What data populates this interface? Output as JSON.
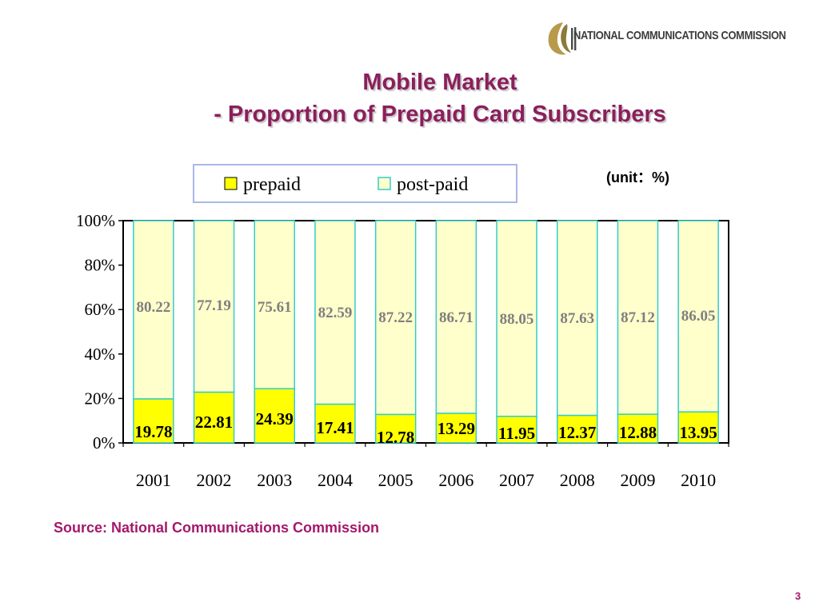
{
  "header": {
    "org_name": "NATIONAL COMMUNICATIONS COMMISSION",
    "logo_icon": "ncc-logo-icon"
  },
  "slide": {
    "title_line1": "Mobile Market",
    "title_line2": "- Proportion of  Prepaid Card Subscribers",
    "unit": "(unit：%)",
    "source": "Source: National Communications Commission",
    "page_number": "3"
  },
  "chart_data": {
    "type": "bar",
    "stacked": true,
    "categories": [
      "2001",
      "2002",
      "2003",
      "2004",
      "2005",
      "2006",
      "2007",
      "2008",
      "2009",
      "2010"
    ],
    "series": [
      {
        "name": "prepaid",
        "color": "#ffff00",
        "values": [
          19.78,
          22.81,
          24.39,
          17.41,
          12.78,
          13.29,
          11.95,
          12.37,
          12.88,
          13.95
        ],
        "labels": [
          "19.78",
          "22.81",
          "24.39",
          "17.41",
          "12.78",
          "13.29",
          "11.95",
          "12.37",
          "12.88",
          "13.95"
        ]
      },
      {
        "name": "post-paid",
        "color": "#ffffcc",
        "values": [
          80.22,
          77.19,
          75.61,
          82.59,
          87.22,
          86.71,
          88.05,
          87.63,
          87.12,
          86.05
        ],
        "labels": [
          "80.22",
          "77.19",
          "75.61",
          "82.59",
          "87.22",
          "86.71",
          "88.05",
          "87.63",
          "87.12",
          "86.05"
        ]
      }
    ],
    "ylim": [
      0,
      100
    ],
    "yticks": [
      "0%",
      "20%",
      "40%",
      "60%",
      "80%",
      "100%"
    ],
    "legend_position": "top",
    "grid": false,
    "bar_outline_color": "#33cccc",
    "prepaid_label_color": "#000000",
    "postpaid_label_color": "#7f7f7f"
  }
}
